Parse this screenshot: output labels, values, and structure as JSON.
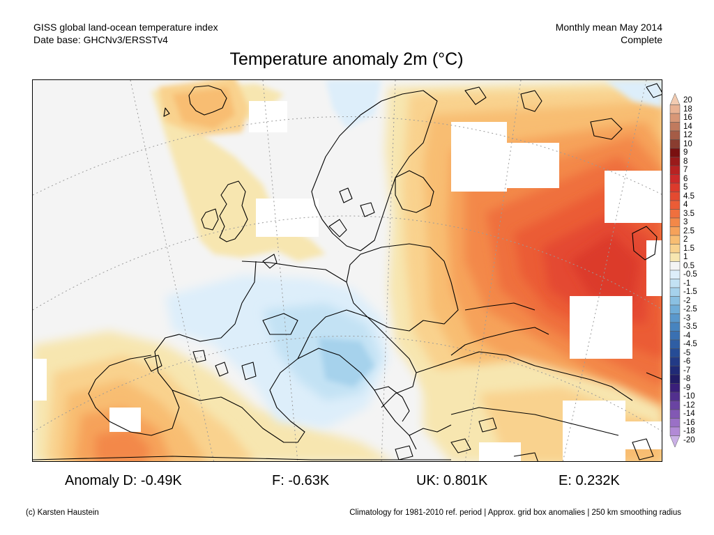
{
  "header": {
    "left_line1": "GISS global land-ocean temperature index",
    "left_line2": "Date base: GHCNv3/ERSSTv4",
    "right_line1": "Monthly mean May 2014",
    "right_line2": "Complete"
  },
  "title": "Temperature anomaly 2m (°C)",
  "stats": {
    "germany": "Anomaly D: -0.49K",
    "france": "F: -0.63K",
    "uk": "UK: 0.801K",
    "spain": "E: 0.232K"
  },
  "footer": {
    "credit": "(c) Karsten Haustein",
    "note": "Climatology for 1981-2010 ref. period | Approx. grid box anomalies | 250 km smoothing radius"
  },
  "colorbar": {
    "labels": [
      "20",
      "18",
      "16",
      "14",
      "12",
      "10",
      "9",
      "8",
      "7",
      "6",
      "5",
      "4.5",
      "4",
      "3.5",
      "3",
      "2.5",
      "2",
      "1.5",
      "1",
      "0.5",
      "-0.5",
      "-1",
      "-1.5",
      "-2",
      "-2.5",
      "-3",
      "-3.5",
      "-4",
      "-4.5",
      "-5",
      "-6",
      "-7",
      "-8",
      "-9",
      "-10",
      "-12",
      "-14",
      "-16",
      "-18",
      "-20"
    ],
    "colors": [
      "#f2cbb1",
      "#e9b293",
      "#d89777",
      "#c07a5e",
      "#a55c46",
      "#8a3d30",
      "#7a1010",
      "#9a1a1a",
      "#b82222",
      "#cc2a2a",
      "#dc3a2c",
      "#e44a30",
      "#eb5c36",
      "#ef703e",
      "#f38848",
      "#f6a25a",
      "#f8bd72",
      "#f9d28e",
      "#f7e6b0",
      "#f4f4f4",
      "#ddeefa",
      "#c3e2f4",
      "#a6d2ec",
      "#8ac0e2",
      "#70add8",
      "#5a98cc",
      "#4784bf",
      "#3a70b2",
      "#2f5ea4",
      "#264c96",
      "#223a86",
      "#202a76",
      "#221c66",
      "#3a1f7a",
      "#52308e",
      "#6a44a2",
      "#8258b4",
      "#9a70c6",
      "#b28ad6",
      "#cab0e6"
    ]
  },
  "map": {
    "anomaly_fill_colors": {
      "neutral": "#f4f4f4",
      "no_data": "#ffffff",
      "warm_0_5_to_1": "#f7e6b0",
      "warm_1_to_1_5": "#f9d28e",
      "warm_1_5_to_2": "#f8bd72",
      "warm_2_to_2_5": "#f6a25a",
      "warm_2_5_to_3": "#f38848",
      "warm_3_to_3_5": "#ef703e",
      "warm_3_5_to_4": "#eb5c36",
      "warm_4_to_4_5": "#e44a30",
      "warm_4_5_to_5": "#dc3a2c",
      "cool_0_5_to_1": "#ddeefa",
      "cool_1_to_1_5": "#c3e2f4",
      "cool_1_5_to_2": "#a6d2ec"
    }
  }
}
